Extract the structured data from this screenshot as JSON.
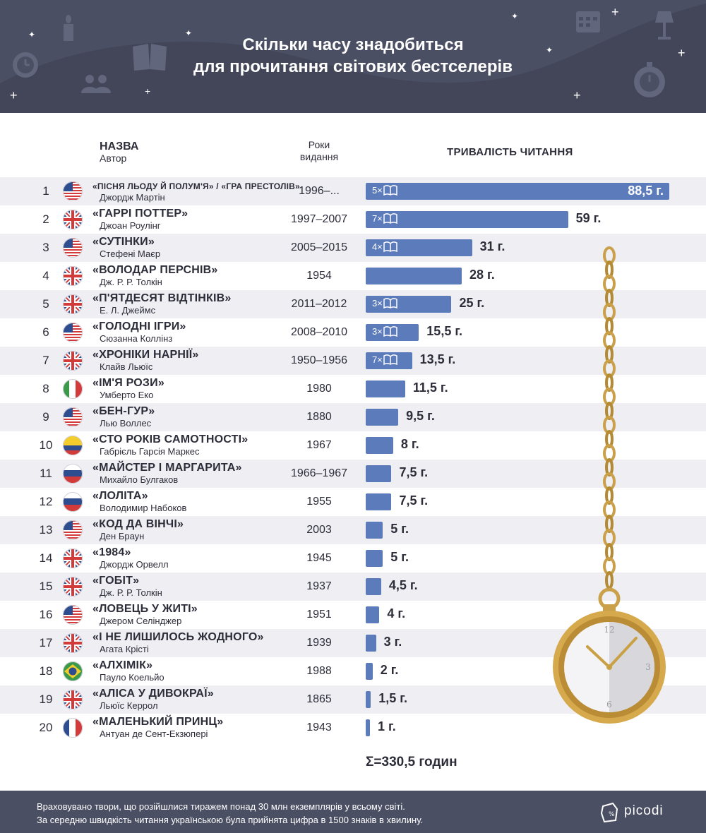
{
  "header": {
    "title_line1": "Скільки часу знадобиться",
    "title_line2": "для прочитання світових бестселерів"
  },
  "columns": {
    "name_title": "НАЗВА",
    "name_sub": "Автор",
    "years_line1": "Роки",
    "years_line2": "видання",
    "duration": "ТРИВАЛІСТЬ ЧИТАННЯ"
  },
  "colors": {
    "bar": "#5b7bbb",
    "header_bg": "#4b4f64",
    "row_shade": "#eeeef3",
    "text": "#2d2d3a"
  },
  "chart_data": {
    "type": "bar",
    "orientation": "horizontal",
    "title": "Скільки часу знадобиться для прочитання світових бестселерів",
    "value_unit": "г.",
    "xlim": [
      0,
      88.5
    ],
    "rows": [
      {
        "rank": "1",
        "flag": "us",
        "title": "«ПІСНЯ ЛЬОДУ Й ПОЛУМ'Я» / «ГРА ПРЕСТОЛІВ»",
        "author": "Джордж Мартін",
        "years": "1996–...",
        "hours": 88.5,
        "label": "88,5 г.",
        "volumes": "5×"
      },
      {
        "rank": "2",
        "flag": "uk",
        "title": "«ГАРРІ ПОТТЕР»",
        "author": "Джоан Роулінг",
        "years": "1997–2007",
        "hours": 59,
        "label": "59 г.",
        "volumes": "7×"
      },
      {
        "rank": "3",
        "flag": "us",
        "title": "«СУТІНКИ»",
        "author": "Стефені Маєр",
        "years": "2005–2015",
        "hours": 31,
        "label": "31 г.",
        "volumes": "4×"
      },
      {
        "rank": "4",
        "flag": "uk",
        "title": "«ВОЛОДАР ПЕРСНІВ»",
        "author": "Дж. Р. Р. Толкін",
        "years": "1954",
        "hours": 28,
        "label": "28 г.",
        "volumes": ""
      },
      {
        "rank": "5",
        "flag": "uk",
        "title": "«П'ЯТДЕСЯТ ВІДТІНКІВ»",
        "author": "Е. Л. Джеймс",
        "years": "2011–2012",
        "hours": 25,
        "label": "25 г.",
        "volumes": "3×"
      },
      {
        "rank": "6",
        "flag": "us",
        "title": "«ГОЛОДНІ ІГРИ»",
        "author": "Сюзанна Коллінз",
        "years": "2008–2010",
        "hours": 15.5,
        "label": "15,5 г.",
        "volumes": "3×"
      },
      {
        "rank": "7",
        "flag": "uk",
        "title": "«ХРОНІКИ НАРНІЇ»",
        "author": "Клайв Льюїс",
        "years": "1950–1956",
        "hours": 13.5,
        "label": "13,5 г.",
        "volumes": "7×"
      },
      {
        "rank": "8",
        "flag": "it",
        "title": "«ІМ'Я РОЗИ»",
        "author": "Умберто Еко",
        "years": "1980",
        "hours": 11.5,
        "label": "11,5 г.",
        "volumes": ""
      },
      {
        "rank": "9",
        "flag": "us",
        "title": "«БЕН-ГУР»",
        "author": "Лью Воллес",
        "years": "1880",
        "hours": 9.5,
        "label": "9,5 г.",
        "volumes": ""
      },
      {
        "rank": "10",
        "flag": "co",
        "title": "«СТО РОКІВ САМОТНОСТІ»",
        "author": "Габрієль Гарсія Маркес",
        "years": "1967",
        "hours": 8,
        "label": "8 г.",
        "volumes": ""
      },
      {
        "rank": "11",
        "flag": "ru",
        "title": "«МАЙСТЕР І МАРГАРИТА»",
        "author": "Михайло Булгаков",
        "years": "1966–1967",
        "hours": 7.5,
        "label": "7,5 г.",
        "volumes": ""
      },
      {
        "rank": "12",
        "flag": "ru",
        "title": "«ЛОЛІТА»",
        "author": "Володимир Набоков",
        "years": "1955",
        "hours": 7.5,
        "label": "7,5 г.",
        "volumes": ""
      },
      {
        "rank": "13",
        "flag": "us",
        "title": "«КОД ДА ВІНЧІ»",
        "author": "Ден Браун",
        "years": "2003",
        "hours": 5,
        "label": "5 г.",
        "volumes": ""
      },
      {
        "rank": "14",
        "flag": "uk",
        "title": "«1984»",
        "author": "Джордж Орвелл",
        "years": "1945",
        "hours": 5,
        "label": "5 г.",
        "volumes": ""
      },
      {
        "rank": "15",
        "flag": "uk",
        "title": "«ГОБІТ»",
        "author": "Дж. Р. Р. Толкін",
        "years": "1937",
        "hours": 4.5,
        "label": "4,5 г.",
        "volumes": ""
      },
      {
        "rank": "16",
        "flag": "us",
        "title": "«ЛОВЕЦЬ У ЖИТІ»",
        "author": "Джером Селінджер",
        "years": "1951",
        "hours": 4,
        "label": "4 г.",
        "volumes": ""
      },
      {
        "rank": "17",
        "flag": "uk",
        "title": "«І НЕ ЛИШИЛОСЬ ЖОДНОГО»",
        "author": "Агата Крісті",
        "years": "1939",
        "hours": 3,
        "label": "3 г.",
        "volumes": ""
      },
      {
        "rank": "18",
        "flag": "br",
        "title": "«АЛХІМІК»",
        "author": "Пауло Коельйо",
        "years": "1988",
        "hours": 2,
        "label": "2 г.",
        "volumes": ""
      },
      {
        "rank": "19",
        "flag": "uk",
        "title": "«АЛІСА У ДИВОКРАЇ»",
        "author": "Льюїс Керрол",
        "years": "1865",
        "hours": 1.5,
        "label": "1,5 г.",
        "volumes": ""
      },
      {
        "rank": "20",
        "flag": "fr",
        "title": "«МАЛЕНЬКИЙ ПРИНЦ»",
        "author": "Антуан де Сент-Екзюпері",
        "years": "1943",
        "hours": 1,
        "label": "1 г.",
        "volumes": ""
      }
    ]
  },
  "summary": {
    "total": "Σ=330,5 годин"
  },
  "watch": {
    "numeral_12": "12",
    "numeral_3": "3",
    "numeral_6": "6"
  },
  "footer": {
    "note_line1": "Враховувано твори, що розійшлися тиражем понад 30 млн екземплярів у всьому світі.",
    "note_line2": "За середню швидкість читання українською була прийнята цифра в 1500 знаків в хвилину.",
    "brand": "picodi"
  }
}
